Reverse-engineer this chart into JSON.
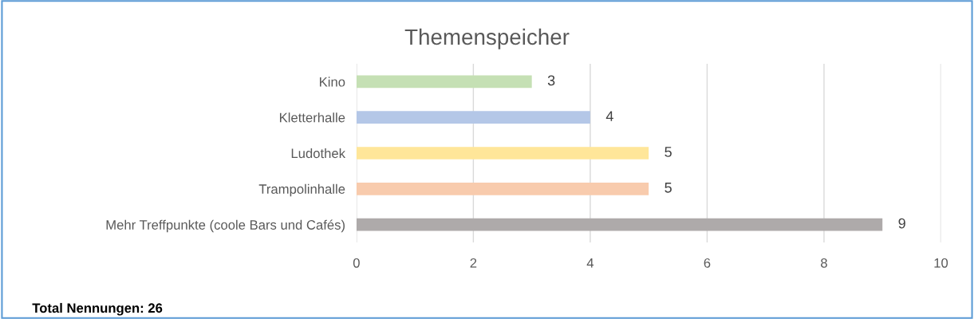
{
  "chart_data": {
    "type": "bar",
    "orientation": "horizontal",
    "title": "Themenspeicher",
    "categories": [
      "Kino",
      "Kletterhalle",
      "Ludothek",
      "Trampolinhalle",
      "Mehr Treffpunkte (coole Bars und Cafés)"
    ],
    "values": [
      3,
      4,
      5,
      5,
      9
    ],
    "colors": [
      "#c5e0b4",
      "#b4c7e7",
      "#ffe699",
      "#f8cbad",
      "#aeaaaa"
    ],
    "xlim": [
      0,
      10
    ],
    "xticks": [
      0,
      2,
      4,
      6,
      8,
      10
    ],
    "grid": "x",
    "data_labels": true,
    "annotations": [
      "Total Nennungen: 26"
    ]
  }
}
